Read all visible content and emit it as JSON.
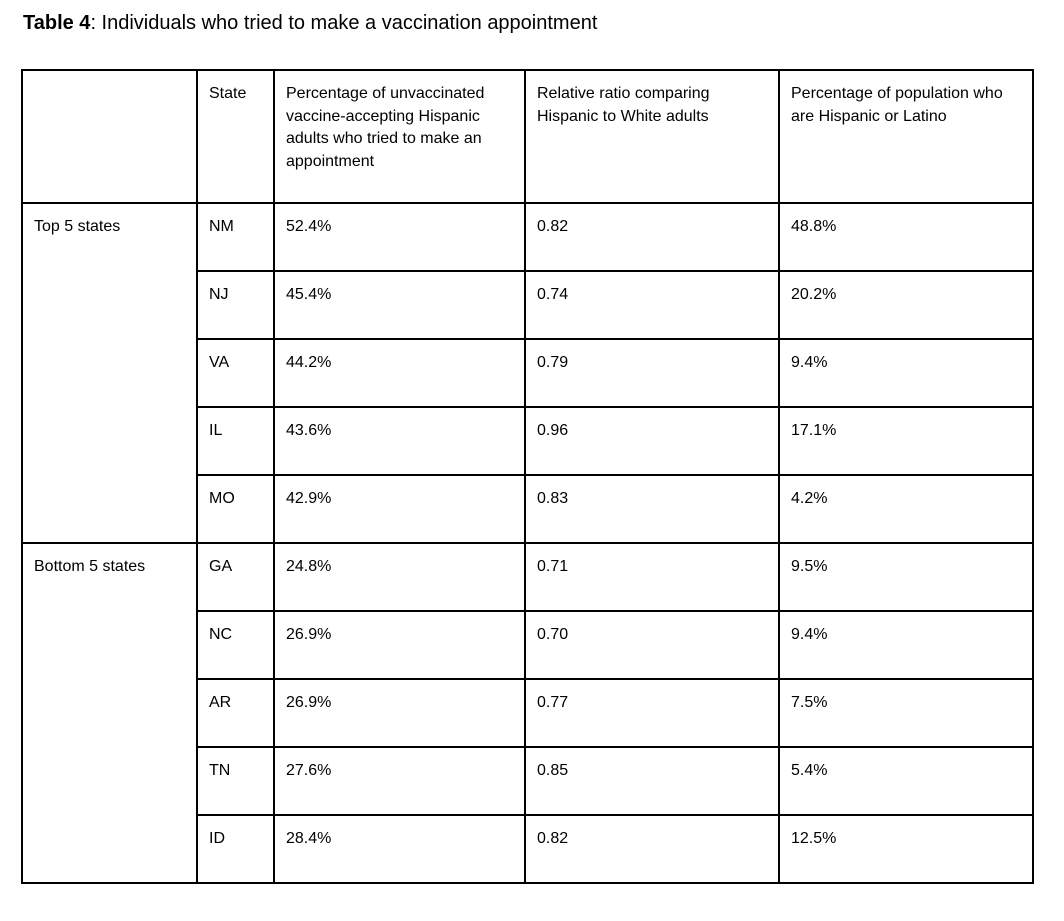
{
  "title": {
    "prefix": "Table 4",
    "rest": ": Individuals who tried to make a vaccination appointment"
  },
  "table": {
    "headers": [
      "",
      "State",
      "Percentage of unvaccinated vaccine-accepting Hispanic adults who tried to make an appointment",
      "Relative ratio comparing Hispanic to White adults",
      "Percentage of population who are Hispanic or Latino"
    ],
    "groups": [
      {
        "label": "Top 5 states",
        "rows": [
          {
            "state": "NM",
            "pct_tried": "52.4%",
            "ratio": "0.82",
            "pct_pop": "48.8%"
          },
          {
            "state": "NJ",
            "pct_tried": "45.4%",
            "ratio": "0.74",
            "pct_pop": "20.2%"
          },
          {
            "state": "VA",
            "pct_tried": "44.2%",
            "ratio": "0.79",
            "pct_pop": "9.4%"
          },
          {
            "state": "IL",
            "pct_tried": "43.6%",
            "ratio": "0.96",
            "pct_pop": "17.1%"
          },
          {
            "state": "MO",
            "pct_tried": "42.9%",
            "ratio": "0.83",
            "pct_pop": "4.2%"
          }
        ]
      },
      {
        "label": "Bottom 5 states",
        "rows": [
          {
            "state": "GA",
            "pct_tried": "24.8%",
            "ratio": "0.71",
            "pct_pop": "9.5%"
          },
          {
            "state": "NC",
            "pct_tried": "26.9%",
            "ratio": "0.70",
            "pct_pop": "9.4%"
          },
          {
            "state": "AR",
            "pct_tried": "26.9%",
            "ratio": "0.77",
            "pct_pop": "7.5%"
          },
          {
            "state": "TN",
            "pct_tried": "27.6%",
            "ratio": "0.85",
            "pct_pop": "5.4%"
          },
          {
            "state": "ID",
            "pct_tried": "28.4%",
            "ratio": "0.82",
            "pct_pop": "12.5%"
          }
        ]
      }
    ],
    "colors": {
      "border": "#000000",
      "text": "#000000",
      "background": "#ffffff"
    }
  }
}
